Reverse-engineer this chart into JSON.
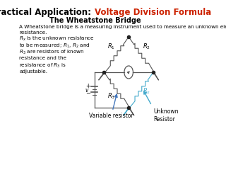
{
  "title_black": "Practical Application: ",
  "title_red": "Voltage Division Formula",
  "subtitle": "The Wheatstone Bridge",
  "para1": "A Wheatstone bridge is a measuring instrument used to measure an unknown electrical\nresistance.",
  "para2": "Rx is the unknown resistance\nto be measured; R1, R2 and\nR3 are resistors of known\nresistance and the\nresistance of R3 is\nadjustable.",
  "bg_color": "#ffffff",
  "circuit_color": "#555555",
  "resistor_color": "#555555",
  "cyan_color": "#44aacc",
  "label_arrow_color": "#4477bb",
  "node_color": "#222222",
  "galv_color": "#555555"
}
